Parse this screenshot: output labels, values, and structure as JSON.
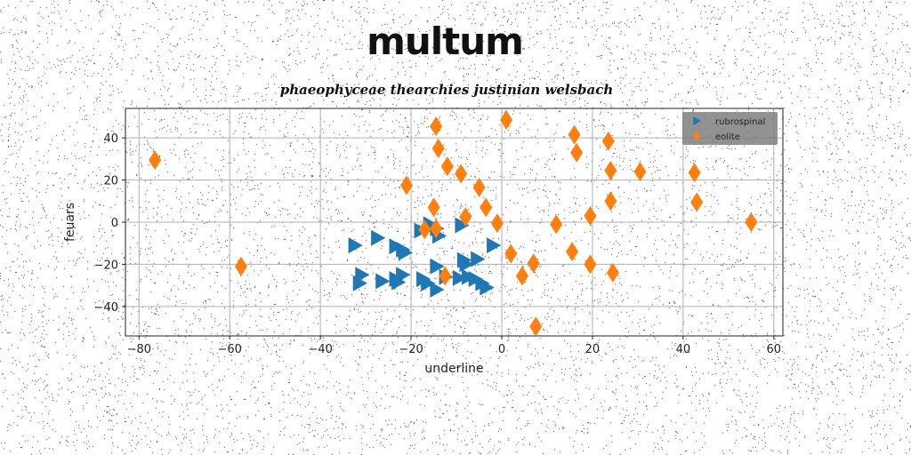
{
  "title": "multum",
  "subtitle": "phaeophyceae thearchies justinian welsbach",
  "chart_data": {
    "type": "scatter",
    "xlabel": "underline",
    "ylabel": "feuars",
    "xlim": [
      -83,
      62
    ],
    "ylim": [
      -54,
      54
    ],
    "xticks": [
      -80,
      -60,
      -40,
      -20,
      0,
      20,
      40,
      60
    ],
    "yticks": [
      -40,
      -20,
      0,
      20,
      40
    ],
    "grid": true,
    "legend_position": "top-right",
    "series": [
      {
        "name": "rubrospinal",
        "marker": "triangle-right",
        "color": "#1f77b4",
        "points": [
          [
            -32.5,
            -11
          ],
          [
            -27.5,
            -7.5
          ],
          [
            -23.5,
            -11.5
          ],
          [
            -22,
            -13
          ],
          [
            -21.5,
            -14.5
          ],
          [
            -18,
            -4
          ],
          [
            -16,
            -1
          ],
          [
            -14.5,
            -3
          ],
          [
            -14,
            -6.5
          ],
          [
            -9,
            -1.5
          ],
          [
            -2,
            -11
          ],
          [
            -31,
            -25
          ],
          [
            -31.5,
            -29
          ],
          [
            -26.5,
            -28
          ],
          [
            -23.5,
            -27
          ],
          [
            -22,
            -25
          ],
          [
            -23,
            -28.5
          ],
          [
            -17.5,
            -27
          ],
          [
            -16.5,
            -29
          ],
          [
            -14.5,
            -21
          ],
          [
            -14.5,
            -32
          ],
          [
            -12.5,
            -26
          ],
          [
            -9.5,
            -26.5
          ],
          [
            -8.5,
            -18
          ],
          [
            -7.5,
            -26
          ],
          [
            -6,
            -27
          ],
          [
            -5.5,
            -17.5
          ],
          [
            -4.5,
            -29
          ],
          [
            -3.5,
            -31
          ],
          [
            -8,
            -20
          ]
        ]
      },
      {
        "name": "eolite",
        "marker": "diamond",
        "color": "#ff7f0e",
        "points": [
          [
            -76.5,
            29.5
          ],
          [
            -57.5,
            -21
          ],
          [
            -21,
            17.5
          ],
          [
            -17,
            -3.5
          ],
          [
            -14.5,
            45.5
          ],
          [
            -14,
            35
          ],
          [
            -15,
            7
          ],
          [
            -14.5,
            -3
          ],
          [
            -12,
            26.5
          ],
          [
            -12.5,
            -25.5
          ],
          [
            -9,
            23
          ],
          [
            -8,
            2.5
          ],
          [
            -5,
            16.5
          ],
          [
            -3.5,
            7
          ],
          [
            -1,
            -0.5
          ],
          [
            1,
            48.5
          ],
          [
            2,
            -15
          ],
          [
            4.5,
            -25.5
          ],
          [
            7,
            -19.5
          ],
          [
            7.5,
            -49.5
          ],
          [
            12,
            -1
          ],
          [
            15.5,
            -14
          ],
          [
            16,
            41.5
          ],
          [
            16.5,
            33
          ],
          [
            19.5,
            3
          ],
          [
            19.5,
            -20
          ],
          [
            23.5,
            38.5
          ],
          [
            24,
            24.5
          ],
          [
            24,
            10
          ],
          [
            24.5,
            -24
          ],
          [
            30.5,
            24
          ],
          [
            42.5,
            23.5
          ],
          [
            43,
            9.5
          ],
          [
            55,
            0
          ]
        ]
      }
    ]
  }
}
